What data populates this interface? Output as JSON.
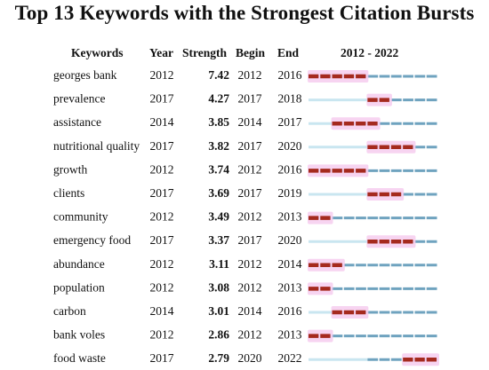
{
  "chart_data": {
    "type": "table",
    "title": "Top 13 Keywords with the Strongest Citation Bursts",
    "columns": [
      "Keywords",
      "Year",
      "Strength",
      "Begin",
      "End",
      "2012 - 2022"
    ],
    "timeline_start": 2012,
    "timeline_end": 2022,
    "colors": {
      "burst": "#a52a1e",
      "burst_shadow": "#f4c6ec",
      "active": "#6fa3bf",
      "inactive": "#c9e6f0"
    },
    "rows": [
      {
        "keyword": "georges bank",
        "year": "2012",
        "strength": "7.42",
        "begin": "2012",
        "end": "2016"
      },
      {
        "keyword": "prevalence",
        "year": "2017",
        "strength": "4.27",
        "begin": "2017",
        "end": "2018"
      },
      {
        "keyword": "assistance",
        "year": "2014",
        "strength": "3.85",
        "begin": "2014",
        "end": "2017"
      },
      {
        "keyword": "nutritional quality",
        "year": "2017",
        "strength": "3.82",
        "begin": "2017",
        "end": "2020"
      },
      {
        "keyword": "growth",
        "year": "2012",
        "strength": "3.74",
        "begin": "2012",
        "end": "2016"
      },
      {
        "keyword": "clients",
        "year": "2017",
        "strength": "3.69",
        "begin": "2017",
        "end": "2019"
      },
      {
        "keyword": "community",
        "year": "2012",
        "strength": "3.49",
        "begin": "2012",
        "end": "2013"
      },
      {
        "keyword": "emergency food",
        "year": "2017",
        "strength": "3.37",
        "begin": "2017",
        "end": "2020"
      },
      {
        "keyword": "abundance",
        "year": "2012",
        "strength": "3.11",
        "begin": "2012",
        "end": "2014"
      },
      {
        "keyword": "population",
        "year": "2012",
        "strength": "3.08",
        "begin": "2012",
        "end": "2013"
      },
      {
        "keyword": "carbon",
        "year": "2014",
        "strength": "3.01",
        "begin": "2014",
        "end": "2016"
      },
      {
        "keyword": "bank voles",
        "year": "2012",
        "strength": "2.86",
        "begin": "2012",
        "end": "2013"
      },
      {
        "keyword": "food waste",
        "year": "2017",
        "strength": "2.79",
        "begin": "2020",
        "end": "2022"
      }
    ]
  }
}
